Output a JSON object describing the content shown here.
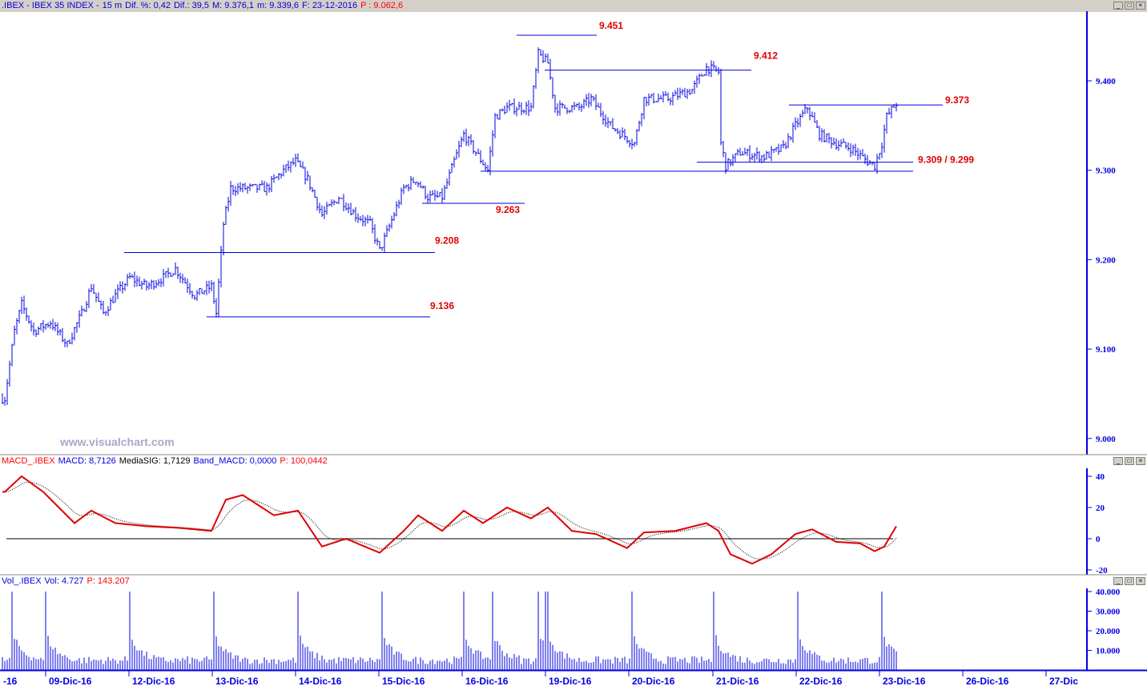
{
  "title_bar": {
    "symbol": ".IBEX - IBEX 35 INDEX -",
    "interval": "15 m",
    "dif_pct": "Dif. %: 0,42",
    "dif": "Dif.: 39,5",
    "max": "M: 9.376,1",
    "min": "m: 9.339,6",
    "date": "F: 23-12-2016",
    "price": "P : 9.062,6"
  },
  "watermark": "www.visualchart.com",
  "macd_header": {
    "name": "MACD_.IBEX",
    "macd": "MACD: 8,7126",
    "signal": "MediaSIG: 1,7129",
    "band": "Band_MACD: 0,0000",
    "p": "P: 100,0442"
  },
  "vol_header": {
    "name": "Vol_.IBEX",
    "vol": "Vol: 4.727",
    "p": "P: 143.207"
  },
  "window_buttons": [
    "minimize",
    "maximize",
    "close"
  ],
  "colors": {
    "price": "#0000e0",
    "macd": "#e00000",
    "annot": "#e00000",
    "axis": "#0000e0"
  },
  "chart_data": [
    {
      "type": "bar",
      "title": "IBEX 35 INDEX 15 m",
      "x_unit": "bar index (15 m)",
      "price_axis": {
        "ticks": [
          "9.000",
          "9.100",
          "9.200",
          "9.300",
          "9.400"
        ],
        "range": [
          8.96,
          9.46
        ]
      },
      "date_labels": [
        "-16",
        "09-Dic-16",
        "12-Dic-16",
        "13-Dic-16",
        "14-Dic-16",
        "15-Dic-16",
        "16-Dic-16",
        "19-Dic-16",
        "20-Dic-16",
        "21-Dic-16",
        "22-Dic-16",
        "23-Dic-16",
        "26-Dic-16",
        "27-Dic"
      ],
      "close_waypoints": [
        [
          1,
          9.045
        ],
        [
          5,
          9.12
        ],
        [
          8,
          9.15
        ],
        [
          13,
          9.12
        ],
        [
          20,
          9.13
        ],
        [
          27,
          9.105
        ],
        [
          33,
          9.14
        ],
        [
          37,
          9.17
        ],
        [
          42,
          9.14
        ],
        [
          47,
          9.16
        ],
        [
          53,
          9.18
        ],
        [
          60,
          9.17
        ],
        [
          67,
          9.18
        ],
        [
          72,
          9.19
        ],
        [
          80,
          9.16
        ],
        [
          87,
          9.17
        ],
        [
          89,
          9.14
        ],
        [
          92,
          9.24
        ],
        [
          95,
          9.28
        ],
        [
          100,
          9.28
        ],
        [
          110,
          9.28
        ],
        [
          117,
          9.3
        ],
        [
          122,
          9.31
        ],
        [
          127,
          9.29
        ],
        [
          133,
          9.25
        ],
        [
          140,
          9.27
        ],
        [
          147,
          9.25
        ],
        [
          153,
          9.24
        ],
        [
          157,
          9.21
        ],
        [
          160,
          9.23
        ],
        [
          167,
          9.28
        ],
        [
          172,
          9.29
        ],
        [
          177,
          9.27
        ],
        [
          183,
          9.27
        ],
        [
          188,
          9.31
        ],
        [
          192,
          9.34
        ],
        [
          197,
          9.32
        ],
        [
          202,
          9.3
        ],
        [
          205,
          9.36
        ],
        [
          210,
          9.37
        ],
        [
          220,
          9.37
        ],
        [
          223,
          9.43
        ],
        [
          227,
          9.42
        ],
        [
          230,
          9.37
        ],
        [
          240,
          9.37
        ],
        [
          245,
          9.38
        ],
        [
          253,
          9.35
        ],
        [
          263,
          9.33
        ],
        [
          267,
          9.38
        ],
        [
          277,
          9.38
        ],
        [
          287,
          9.39
        ],
        [
          293,
          9.415
        ],
        [
          298,
          9.41
        ],
        [
          299,
          9.33
        ],
        [
          301,
          9.305
        ],
        [
          307,
          9.32
        ],
        [
          317,
          9.315
        ],
        [
          325,
          9.325
        ],
        [
          330,
          9.35
        ],
        [
          335,
          9.37
        ],
        [
          340,
          9.34
        ],
        [
          347,
          9.33
        ],
        [
          353,
          9.325
        ],
        [
          360,
          9.31
        ],
        [
          363,
          9.305
        ],
        [
          366,
          9.33
        ],
        [
          368,
          9.36
        ],
        [
          372,
          9.375
        ]
      ],
      "levels": [
        {
          "label": "9.451",
          "value": 9.451
        },
        {
          "label": "9.412",
          "value": 9.412
        },
        {
          "label": "9.373",
          "value": 9.373
        },
        {
          "label": "9.309 / 9.299",
          "value": 9.309,
          "value2": 9.299
        },
        {
          "label": "9.263",
          "value": 9.263
        },
        {
          "label": "9.208",
          "value": 9.208
        },
        {
          "label": "9.136",
          "value": 9.136
        }
      ]
    },
    {
      "type": "line",
      "title": "MACD",
      "yticks": [
        "40",
        "20",
        "0",
        "-20"
      ],
      "range": [
        -23,
        43
      ],
      "macd_waypoints": [
        [
          1,
          30
        ],
        [
          8,
          40
        ],
        [
          17,
          30
        ],
        [
          30,
          10
        ],
        [
          37,
          18
        ],
        [
          47,
          10
        ],
        [
          60,
          8
        ],
        [
          73,
          7
        ],
        [
          87,
          5
        ],
        [
          93,
          25
        ],
        [
          100,
          28
        ],
        [
          113,
          15
        ],
        [
          123,
          18
        ],
        [
          133,
          -5
        ],
        [
          143,
          0
        ],
        [
          157,
          -9
        ],
        [
          167,
          5
        ],
        [
          173,
          15
        ],
        [
          183,
          5
        ],
        [
          192,
          18
        ],
        [
          200,
          10
        ],
        [
          210,
          20
        ],
        [
          220,
          13
        ],
        [
          227,
          20
        ],
        [
          237,
          5
        ],
        [
          247,
          3
        ],
        [
          260,
          -6
        ],
        [
          267,
          4
        ],
        [
          280,
          5
        ],
        [
          293,
          10
        ],
        [
          298,
          5
        ],
        [
          303,
          -10
        ],
        [
          312,
          -16
        ],
        [
          320,
          -10
        ],
        [
          330,
          3
        ],
        [
          337,
          6
        ],
        [
          347,
          -2
        ],
        [
          357,
          -3
        ],
        [
          363,
          -8
        ],
        [
          367,
          -5
        ],
        [
          372,
          8
        ]
      ]
    },
    {
      "type": "bar",
      "title": "Volume",
      "yticks": [
        "40.000",
        "30.000",
        "20.000",
        "10.000"
      ],
      "range": [
        0,
        42000
      ],
      "open_spikes": [
        [
          4,
          40000
        ],
        [
          18,
          40000
        ],
        [
          53,
          40000
        ],
        [
          88,
          40000
        ],
        [
          123,
          40000
        ],
        [
          158,
          40000
        ],
        [
          192,
          40000
        ],
        [
          204,
          40000
        ],
        [
          223,
          40000
        ],
        [
          226,
          40000
        ],
        [
          227,
          40000
        ],
        [
          262,
          40000
        ],
        [
          296,
          40000
        ],
        [
          331,
          40000
        ],
        [
          366,
          40000
        ]
      ]
    }
  ]
}
